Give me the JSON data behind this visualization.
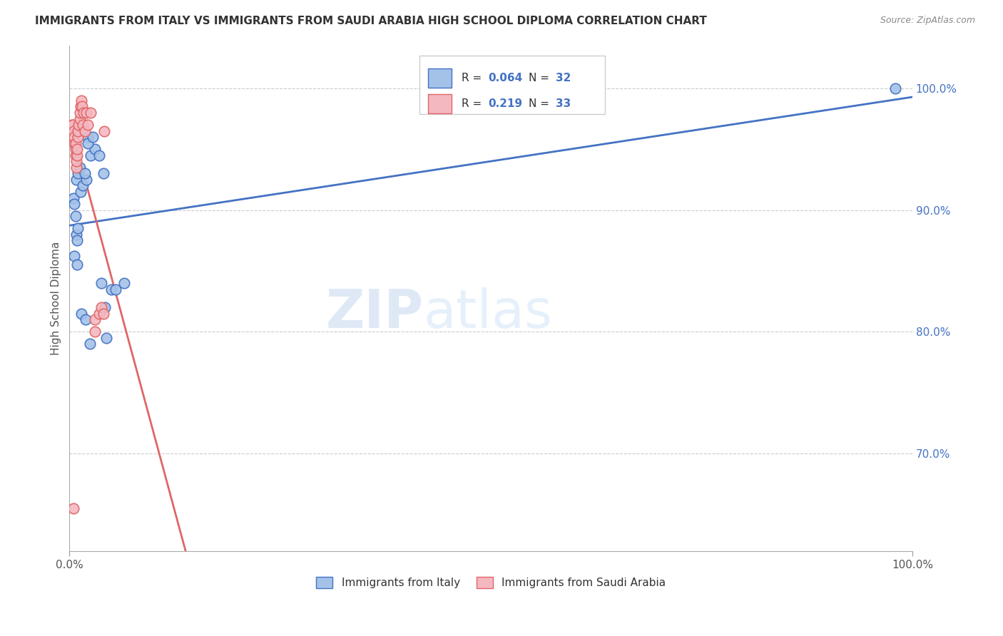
{
  "title": "IMMIGRANTS FROM ITALY VS IMMIGRANTS FROM SAUDI ARABIA HIGH SCHOOL DIPLOMA CORRELATION CHART",
  "source": "Source: ZipAtlas.com",
  "ylabel": "High School Diploma",
  "ytick_labels": [
    "100.0%",
    "90.0%",
    "80.0%",
    "70.0%"
  ],
  "ytick_values": [
    1.0,
    0.9,
    0.8,
    0.7
  ],
  "italy_x": [
    0.008,
    0.022,
    0.005,
    0.008,
    0.01,
    0.012,
    0.007,
    0.006,
    0.009,
    0.01,
    0.013,
    0.016,
    0.02,
    0.018,
    0.025,
    0.03,
    0.022,
    0.028,
    0.035,
    0.04,
    0.05,
    0.055,
    0.065,
    0.006,
    0.009,
    0.014,
    0.019,
    0.024,
    0.038,
    0.042,
    0.044,
    0.98
  ],
  "italy_y": [
    0.88,
    0.96,
    0.91,
    0.925,
    0.93,
    0.935,
    0.895,
    0.905,
    0.875,
    0.885,
    0.915,
    0.92,
    0.925,
    0.93,
    0.945,
    0.95,
    0.955,
    0.96,
    0.945,
    0.93,
    0.835,
    0.835,
    0.84,
    0.862,
    0.855,
    0.815,
    0.81,
    0.79,
    0.84,
    0.82,
    0.795,
    1.0
  ],
  "saudi_x": [
    0.003,
    0.004,
    0.005,
    0.006,
    0.006,
    0.007,
    0.007,
    0.007,
    0.008,
    0.008,
    0.009,
    0.009,
    0.01,
    0.01,
    0.011,
    0.012,
    0.012,
    0.013,
    0.014,
    0.015,
    0.016,
    0.017,
    0.018,
    0.02,
    0.022,
    0.025,
    0.03,
    0.03,
    0.035,
    0.038,
    0.04,
    0.041,
    0.005
  ],
  "saudi_y": [
    0.97,
    0.97,
    0.965,
    0.955,
    0.96,
    0.945,
    0.95,
    0.955,
    0.935,
    0.94,
    0.945,
    0.95,
    0.96,
    0.965,
    0.97,
    0.975,
    0.98,
    0.985,
    0.99,
    0.985,
    0.97,
    0.98,
    0.965,
    0.98,
    0.97,
    0.98,
    0.8,
    0.81,
    0.815,
    0.82,
    0.815,
    0.965,
    0.655
  ],
  "italy_color": "#a4c2e8",
  "italy_edge": "#4472c4",
  "saudi_color": "#f4b8c1",
  "saudi_edge": "#e06666",
  "trend_italy_color": "#4472c4",
  "trend_saudi_color": "#e06666",
  "background_color": "#ffffff",
  "watermark_zip": "ZIP",
  "watermark_atlas": "atlas",
  "grid_color": "#cccccc",
  "xlim": [
    0.0,
    1.0
  ],
  "ylim": [
    0.62,
    1.035
  ]
}
